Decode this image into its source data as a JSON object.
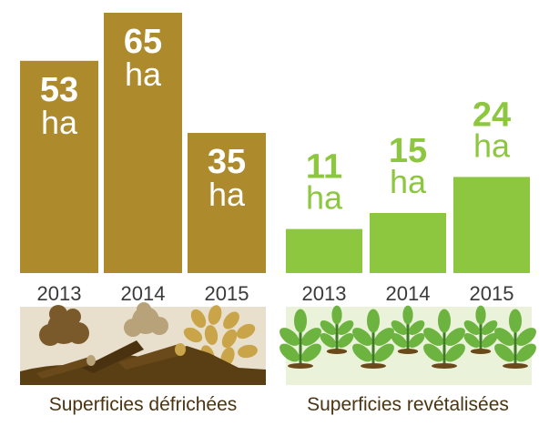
{
  "chart_data": [
    {
      "type": "bar",
      "title": "Superficies défrichées",
      "categories": [
        "2013",
        "2014",
        "2015"
      ],
      "values": [
        53,
        65,
        35
      ],
      "value_number_labels": [
        "53",
        "65",
        "35"
      ],
      "unit": "ha",
      "bar_color": "#ad8a2b",
      "label_color": "#ffffff",
      "ylim": [
        0,
        70
      ],
      "grid": false,
      "illustration": "cut-trees-and-felled-logs"
    },
    {
      "type": "bar",
      "title": "Superficies revétalisées",
      "categories": [
        "2013",
        "2014",
        "2015"
      ],
      "values": [
        11,
        15,
        24
      ],
      "value_number_labels": [
        "11",
        "15",
        "24"
      ],
      "unit": "ha",
      "bar_color": "#8dc63f",
      "label_color": "#8dc63f",
      "ylim": [
        0,
        70
      ],
      "grid": false,
      "illustration": "rows-of-young-green-plants"
    }
  ],
  "colors": {
    "year_label": "#3a3a3a",
    "caption": "#4a3412",
    "left_strip_bg": "#e8dfcd",
    "right_strip_bg": "#eaf2da"
  }
}
